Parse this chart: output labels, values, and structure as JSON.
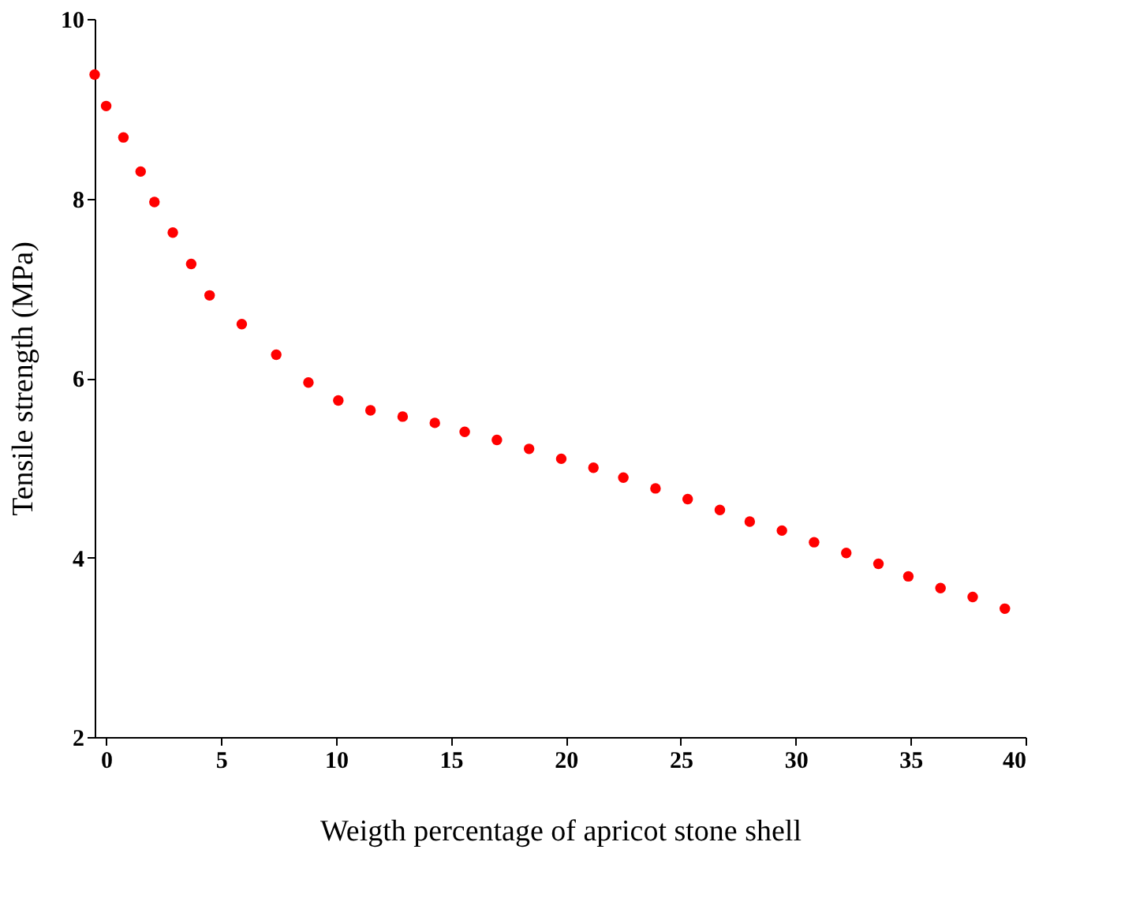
{
  "chart_data": {
    "type": "scatter",
    "xlabel": "Weigth percentage of apricot stone shell",
    "ylabel": "Tensile strength (MPa)",
    "xlim": [
      -0.5,
      40
    ],
    "xticks": [
      0,
      5,
      10,
      15,
      20,
      25,
      30,
      35,
      40
    ],
    "ylim": [
      2,
      10
    ],
    "yticks": [
      2,
      4,
      6,
      8,
      10
    ],
    "grid": false,
    "marker": "circle",
    "series": [
      {
        "color": "#ff0000",
        "x": [
          -0.5,
          0,
          0.75,
          1.5,
          2.1,
          2.9,
          3.7,
          4.5,
          5.9,
          7.4,
          8.8,
          10.1,
          11.5,
          12.9,
          14.3,
          15.6,
          17.0,
          18.4,
          19.8,
          21.2,
          22.5,
          23.9,
          25.3,
          26.7,
          28.0,
          29.4,
          30.8,
          32.2,
          33.6,
          34.9,
          36.3,
          37.7,
          39.1
        ],
        "values": [
          9.38,
          9.03,
          8.68,
          8.3,
          7.96,
          7.62,
          7.27,
          6.92,
          6.6,
          6.26,
          5.95,
          5.75,
          5.64,
          5.57,
          5.5,
          5.4,
          5.31,
          5.21,
          5.1,
          5.0,
          4.89,
          4.77,
          4.65,
          4.53,
          4.4,
          4.3,
          4.17,
          4.05,
          3.93,
          3.79,
          3.66,
          3.56,
          3.43
        ]
      }
    ]
  }
}
